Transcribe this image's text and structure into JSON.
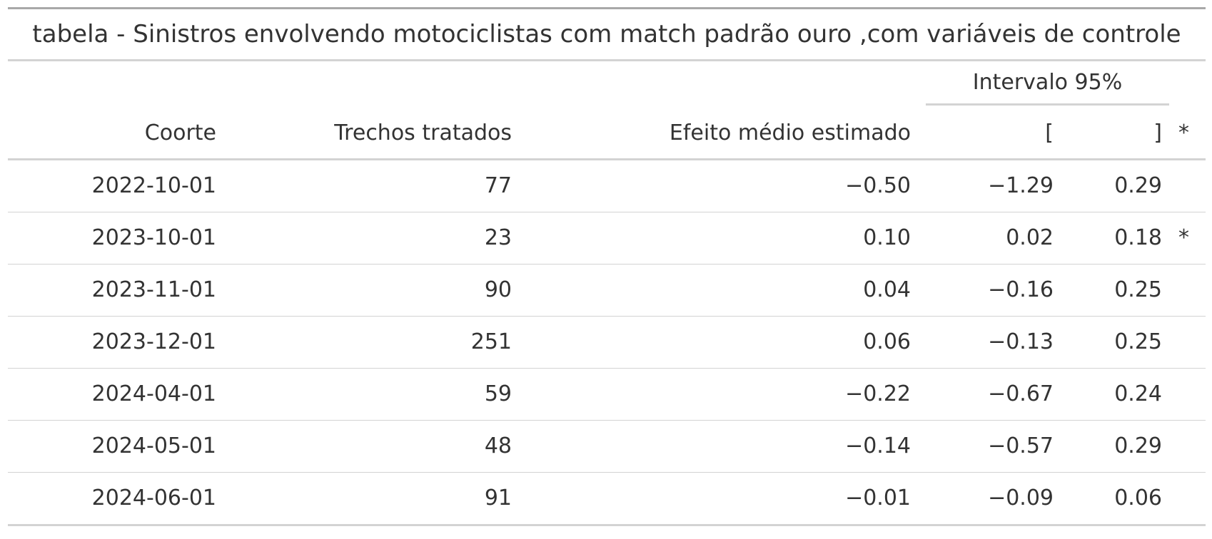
{
  "title": "tabela - Sinistros envolvendo motociclistas com match padrão ouro ,com variáveis de controle",
  "spanner": "Intervalo 95%",
  "columns": [
    "Coorte",
    "Trechos tratados",
    "Efeito médio estimado",
    "[",
    "]",
    "*"
  ],
  "rows": [
    [
      "2022-10-01",
      "77",
      "−0.50",
      "−1.29",
      "0.29",
      ""
    ],
    [
      "2023-10-01",
      "23",
      "0.10",
      "0.02",
      "0.18",
      "*"
    ],
    [
      "2023-11-01",
      "90",
      "0.04",
      "−0.16",
      "0.25",
      ""
    ],
    [
      "2023-12-01",
      "251",
      "0.06",
      "−0.13",
      "0.25",
      ""
    ],
    [
      "2024-04-01",
      "59",
      "−0.22",
      "−0.67",
      "0.24",
      ""
    ],
    [
      "2024-05-01",
      "48",
      "−0.14",
      "−0.57",
      "0.29",
      ""
    ],
    [
      "2024-06-01",
      "91",
      "−0.01",
      "−0.09",
      "0.06",
      ""
    ]
  ],
  "colors": {
    "text": "#333333",
    "rule_dark": "#a8a8a8",
    "rule_light": "#d3d3d3"
  }
}
